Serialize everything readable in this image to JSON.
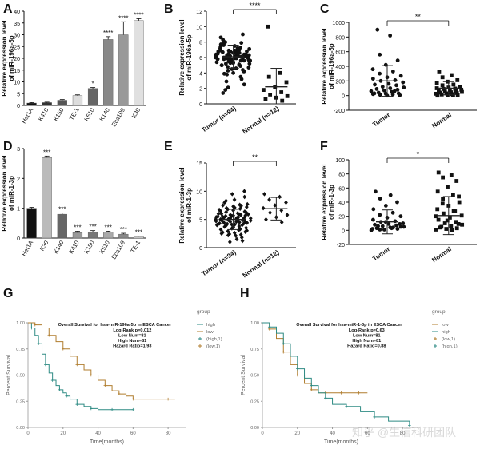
{
  "colors": {
    "black": "#111111",
    "dark_gray": "#555555",
    "mid_gray": "#888888",
    "light_gray": "#bbbbbb",
    "km_teal": "#2e8b84",
    "km_brown": "#b07d2e",
    "km_axis": "#999999"
  },
  "watermark": "知乎 @生信科研团队",
  "chart_data": [
    {
      "panel": "A",
      "type": "bar",
      "ylabel": "Relative expression level of miR-196a-5p",
      "ylim": [
        0,
        40
      ],
      "yticks": [
        0,
        5,
        10,
        15,
        20,
        25,
        30,
        35,
        40
      ],
      "categories": [
        "Het1A",
        "K410",
        "K150",
        "TE-1",
        "K510",
        "K140",
        "Eca109",
        "K30"
      ],
      "values": [
        1,
        1.2,
        2.2,
        4.2,
        7.2,
        28,
        30,
        36
      ],
      "errors": [
        0.2,
        0.2,
        0.3,
        0.3,
        0.4,
        1.2,
        5.5,
        0.8
      ],
      "sig": [
        "",
        "",
        "",
        "",
        "*",
        "****",
        "****",
        "****"
      ],
      "bar_colors": [
        "#111111",
        "#333333",
        "#555555",
        "#dddddd",
        "#666666",
        "#888888",
        "#999999",
        "#e0e0e0"
      ]
    },
    {
      "panel": "B",
      "type": "scatter",
      "ylabel": "Relative expression level of miR-196a-5p",
      "ylim": [
        0,
        12
      ],
      "yticks": [
        0,
        2,
        4,
        6,
        8,
        10,
        12
      ],
      "groups": [
        "Tumor (n=94)",
        "Normal (n=12)"
      ],
      "sig": "****",
      "means": [
        6.1,
        2.2
      ],
      "sds": [
        1.5,
        2.4
      ],
      "points": [
        [
          6.0,
          6.2,
          5.8,
          6.4,
          5.5,
          6.8,
          7.0,
          5.2,
          6.1,
          6.6,
          7.2,
          4.9,
          5.9,
          6.3,
          7.5,
          5.0,
          6.0,
          6.9,
          5.6,
          4.6,
          7.8,
          6.4,
          5.3,
          6.2,
          6.7,
          8.0,
          4.2,
          5.7,
          6.5,
          7.1,
          3.8,
          6.0,
          5.4,
          6.9,
          7.3,
          4.8,
          6.3,
          5.9,
          8.3,
          3.5,
          6.1,
          5.2,
          6.6,
          7.6,
          4.4,
          5.8,
          6.4,
          7.0,
          2.9,
          6.2,
          5.5,
          8.6,
          5.1,
          6.0,
          6.8,
          4.0,
          7.4,
          5.6,
          6.3,
          2.5,
          6.1,
          5.0,
          7.9,
          6.5,
          4.7,
          5.9,
          6.7,
          3.2,
          6.2,
          5.4,
          7.2,
          6.0,
          9.0,
          4.5,
          5.8,
          6.6,
          2.1,
          6.3,
          5.3,
          7.7,
          6.1,
          4.3,
          5.7,
          6.9,
          1.8,
          6.0,
          5.5,
          7.1,
          6.4,
          3.9,
          5.6,
          6.8,
          1.4,
          6.2
        ],
        [
          10.0,
          4.0,
          3.5,
          2.8,
          2.2,
          1.8,
          1.5,
          1.2,
          1.0,
          0.8,
          0.6,
          0.4
        ]
      ]
    },
    {
      "panel": "C",
      "type": "scatter",
      "ylabel": "Relative expression level of miR-196a-5p",
      "ylim": [
        -200,
        1000
      ],
      "yticks": [
        -200,
        0,
        200,
        400,
        600,
        800,
        1000
      ],
      "groups": [
        "Tumor",
        "Normal"
      ],
      "sig": "**",
      "means": [
        200,
        100
      ],
      "sds": [
        210,
        90
      ],
      "points": [
        [
          900,
          820,
          560,
          480,
          420,
          360,
          330,
          300,
          270,
          250,
          230,
          210,
          200,
          180,
          160,
          150,
          140,
          120,
          110,
          100,
          90,
          80,
          70,
          60,
          50,
          40,
          30,
          25,
          20,
          15,
          10,
          5,
          0,
          30,
          60
        ],
        [
          330,
          280,
          250,
          210,
          190,
          170,
          150,
          140,
          120,
          110,
          100,
          95,
          90,
          80,
          70,
          65,
          60,
          55,
          50,
          45,
          40,
          35,
          30,
          25,
          20,
          15,
          10,
          5,
          0,
          5
        ]
      ]
    },
    {
      "panel": "D",
      "type": "bar",
      "ylabel": "Relative expression level of miR-1-3p",
      "ylim": [
        0,
        3
      ],
      "yticks": [
        0,
        1,
        2,
        3
      ],
      "categories": [
        "Het1A",
        "K30",
        "K140",
        "K410",
        "K150",
        "K510",
        "Eca109",
        "TE-1"
      ],
      "values": [
        1.0,
        2.7,
        0.8,
        0.18,
        0.2,
        0.2,
        0.13,
        0.05
      ],
      "errors": [
        0.03,
        0.05,
        0.04,
        0.05,
        0.05,
        0.03,
        0.03,
        0.02
      ],
      "sig": [
        "",
        "***",
        "***",
        "***",
        "***",
        "***",
        "***",
        "***"
      ],
      "bar_colors": [
        "#111111",
        "#bbbbbb",
        "#666666",
        "#999999",
        "#777777",
        "#aaaaaa",
        "#888888",
        "#dddddd"
      ]
    },
    {
      "panel": "E",
      "type": "scatter",
      "ylabel": "Relative expression level of miR-1-3p",
      "ylim": [
        0,
        15
      ],
      "yticks": [
        0,
        5,
        10,
        15
      ],
      "groups": [
        "Tumor (n=94)",
        "Normal (n=12)"
      ],
      "sig": "**",
      "means": [
        5.0,
        6.9
      ],
      "sds": [
        1.8,
        2.0
      ],
      "points": [
        [
          5.0,
          4.8,
          5.3,
          4.5,
          5.6,
          4.2,
          5.9,
          3.9,
          6.2,
          3.6,
          6.5,
          3.3,
          6.8,
          3.0,
          7.1,
          2.7,
          7.4,
          2.4,
          7.7,
          2.1,
          8.0,
          1.8,
          5.1,
          4.7,
          5.4,
          4.4,
          5.7,
          4.1,
          6.0,
          3.8,
          6.3,
          3.5,
          6.6,
          3.2,
          6.9,
          2.9,
          7.2,
          2.6,
          7.5,
          2.3,
          4.9,
          5.2,
          4.6,
          5.5,
          4.3,
          5.8,
          4.0,
          6.1,
          3.7,
          6.4,
          3.4,
          6.7,
          3.1,
          7.0,
          2.8,
          7.3,
          2.5,
          7.6,
          2.2,
          9.0,
          8.5,
          5.0,
          4.9,
          5.1,
          4.8,
          5.2,
          4.7,
          5.3,
          4.6,
          5.4,
          1.5,
          8.3,
          1.2,
          9.5,
          5.5,
          4.5,
          5.6,
          4.4,
          5.7,
          4.3,
          5.8,
          4.2,
          5.9,
          4.1,
          6.0,
          4.0,
          1.0,
          10.0,
          5.0,
          5.1,
          4.9,
          5.2,
          4.8,
          5.3
        ],
        [
          9.5,
          9.0,
          8.5,
          8.0,
          7.5,
          7.0,
          6.6,
          6.2,
          5.8,
          5.4,
          5.0,
          4.5
        ]
      ]
    },
    {
      "panel": "F",
      "type": "scatter",
      "ylabel": "Relative expression level of miR-1-3p",
      "ylim": [
        -20,
        100
      ],
      "yticks": [
        -20,
        0,
        20,
        40,
        60,
        80,
        100
      ],
      "groups": [
        "Tumor",
        "Normal"
      ],
      "sig": "*",
      "means": [
        12,
        21
      ],
      "sds": [
        17,
        27
      ],
      "points": [
        [
          55,
          50,
          45,
          40,
          35,
          30,
          25,
          22,
          20,
          18,
          15,
          13,
          12,
          10,
          9,
          8,
          7,
          6,
          5,
          4,
          3,
          2,
          1,
          0,
          3,
          6,
          9,
          12,
          2,
          4,
          1,
          5
        ],
        [
          82,
          78,
          75,
          70,
          62,
          55,
          50,
          45,
          40,
          35,
          30,
          27,
          24,
          21,
          18,
          15,
          12,
          10,
          8,
          6,
          4,
          3,
          2,
          1,
          0,
          5,
          9,
          14,
          20,
          28,
          38,
          48
        ]
      ]
    },
    {
      "panel": "G",
      "type": "line",
      "title": "Overall Survival for hsa-miR-196a-5p in ESCA Cancer",
      "stats": [
        "Log-Rank p=0.012",
        "Low Num=81",
        "High Num=81",
        "Hazard Ratio=1.93"
      ],
      "xlabel": "Time(months)",
      "ylabel": "Percent Survival",
      "xlim": [
        0,
        90
      ],
      "ylim": [
        0,
        1
      ],
      "xticks": [
        0,
        20,
        40,
        60,
        80
      ],
      "yticks": [
        0,
        0.25,
        0.5,
        0.75,
        1.0
      ],
      "legend_title": "group",
      "legend": [
        "high",
        "low",
        "(high,1)",
        "(low,1)"
      ],
      "series": [
        {
          "name": "high",
          "x": [
            0,
            2,
            4,
            6,
            8,
            10,
            12,
            14,
            16,
            18,
            20,
            22,
            24,
            28,
            32,
            36,
            40,
            48,
            55,
            60
          ],
          "y": [
            1.0,
            0.95,
            0.88,
            0.8,
            0.7,
            0.6,
            0.52,
            0.45,
            0.4,
            0.36,
            0.33,
            0.3,
            0.27,
            0.22,
            0.2,
            0.18,
            0.17,
            0.17,
            0.17,
            0.17
          ]
        },
        {
          "name": "low",
          "x": [
            0,
            4,
            8,
            12,
            16,
            20,
            24,
            28,
            32,
            36,
            40,
            44,
            48,
            52,
            56,
            60,
            70,
            80,
            84
          ],
          "y": [
            1.0,
            0.98,
            0.95,
            0.88,
            0.82,
            0.75,
            0.68,
            0.6,
            0.55,
            0.5,
            0.45,
            0.4,
            0.35,
            0.32,
            0.3,
            0.27,
            0.27,
            0.27,
            0.27
          ]
        }
      ]
    },
    {
      "panel": "H",
      "type": "line",
      "title": "Overall Survival for hsa-miR-1-3p in ESCA Cancer",
      "stats": [
        "Log-Rank p=0.63",
        "Low Num=81",
        "High Num=81",
        "Hazard Ratio=0.88"
      ],
      "xlabel": "Time(months)",
      "ylabel": "Percent Survival",
      "xlim": [
        0,
        90
      ],
      "ylim": [
        0,
        1
      ],
      "xticks": [
        0,
        20,
        40,
        60,
        80
      ],
      "yticks": [
        0,
        0.25,
        0.5,
        0.75,
        1.0
      ],
      "legend_title": "group",
      "legend": [
        "low",
        "high",
        "(low,1)",
        "(high,1)"
      ],
      "series": [
        {
          "name": "low",
          "x": [
            0,
            4,
            8,
            12,
            16,
            20,
            24,
            28,
            32,
            36,
            40,
            45,
            50,
            55,
            60
          ],
          "y": [
            1.0,
            0.94,
            0.85,
            0.72,
            0.6,
            0.5,
            0.42,
            0.36,
            0.33,
            0.33,
            0.33,
            0.33,
            0.33,
            0.33,
            0.33
          ]
        },
        {
          "name": "high",
          "x": [
            0,
            4,
            8,
            12,
            16,
            20,
            24,
            28,
            32,
            36,
            40,
            48,
            56,
            64,
            72,
            84
          ],
          "y": [
            1.0,
            0.96,
            0.9,
            0.8,
            0.68,
            0.56,
            0.47,
            0.4,
            0.33,
            0.28,
            0.22,
            0.2,
            0.15,
            0.1,
            0.06,
            0.02
          ]
        }
      ]
    }
  ]
}
